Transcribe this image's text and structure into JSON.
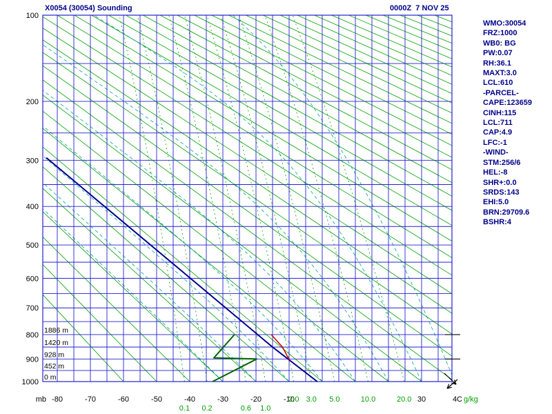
{
  "header": {
    "title": "X0054 (30054) Sounding",
    "datetime": "0000Z  7 NOV 25"
  },
  "stats_panel": {
    "lines": [
      "WMO:30054",
      "FRZ:1000",
      "WB0: BG",
      "PW:0.07",
      "RH:36.1",
      "MAXT:3.0",
      "LCL:610",
      "-PARCEL-",
      "CAPE:123659",
      "CINH:115",
      "LCL:711",
      "CAP:4.9",
      "LFC:-1",
      "-WIND-",
      "STM:256/6",
      "HEL:-8",
      "SHR+:0.0",
      "SRDS:143",
      "EHI:5.0",
      "BRN:29709.6",
      "BSHR:4"
    ]
  },
  "chart_data": {
    "type": "line",
    "diagram": "stuve-sounding",
    "title": "X0054 (30054) Sounding",
    "y_axis": {
      "label": "mb",
      "scale": "pressure^0.286",
      "min": 100,
      "max": 1000,
      "ticks": [
        100,
        200,
        300,
        400,
        500,
        600,
        700,
        800,
        900,
        1000
      ],
      "gridline_step_mb": 50
    },
    "x_axis": {
      "unit": "C",
      "min": -84.4,
      "max": 39.2,
      "ticks": [
        -80,
        -70,
        -60,
        -50,
        -40,
        -30,
        -20,
        -10,
        30
      ],
      "clipped_tick": {
        "value": 40,
        "label": "4"
      },
      "gridline_step_c": 5
    },
    "mixing_ratio_axis": {
      "label": "g/kg",
      "values": [
        0.1,
        0.2,
        0.6,
        1.0,
        2.0,
        3.0,
        5.0,
        10.0,
        20.0
      ],
      "stagger_row2": [
        0.1,
        0.2,
        0.6,
        1.0
      ]
    },
    "dry_adiabats_theta_c": {
      "start": -60,
      "end": 320,
      "step": 10
    },
    "moist_adiabats_thetaw_c": [
      -30,
      -20,
      -10,
      0,
      10,
      20,
      30,
      40
    ],
    "height_labels": [
      {
        "pressure_mb": 800,
        "label": "1886 m"
      },
      {
        "pressure_mb": 850,
        "label": "1420 m"
      },
      {
        "pressure_mb": 900,
        "label": "928 m"
      },
      {
        "pressure_mb": 950,
        "label": "452 m"
      },
      {
        "pressure_mb": 1000,
        "label": "0 m"
      }
    ],
    "series": [
      {
        "name": "temperature",
        "color": "#00008b",
        "width": 2,
        "points_p_t": [
          [
            295,
            -83.3
          ],
          [
            600,
            -39.8
          ],
          [
            850,
            -15.0
          ],
          [
            1000,
            -1.5
          ]
        ]
      },
      {
        "name": "dewpoint",
        "color": "#006400",
        "width": 2,
        "points_p_t": [
          [
            800,
            -26.5
          ],
          [
            895,
            -32.7
          ],
          [
            900,
            -19.8
          ],
          [
            1000,
            -33.1
          ]
        ]
      },
      {
        "name": "parcel",
        "color": "#cc0000",
        "width": 1.5,
        "points_p_t": [
          [
            800,
            -15.4
          ],
          [
            850,
            -12.0
          ],
          [
            905,
            -9.9
          ]
        ]
      }
    ],
    "wind_marks": [
      {
        "type": "tick",
        "pressure_mb": 800
      },
      {
        "type": "tick",
        "pressure_mb": 900
      },
      {
        "type": "arrow",
        "from": [
          644,
          541
        ],
        "to": [
          661,
          557
        ]
      },
      {
        "type": "arrow",
        "from": [
          663,
          550
        ],
        "to": [
          648,
          563
        ]
      }
    ],
    "colors": {
      "grid": "#2222cc",
      "dry_adiabat": "#00a000",
      "moist_adiabat": "#00a0a0",
      "mixing_ratio": "#00a000",
      "axis_text": "#000000",
      "mixing_text": "#00a000",
      "header_text": "#00008b",
      "wind": "#000000"
    }
  }
}
